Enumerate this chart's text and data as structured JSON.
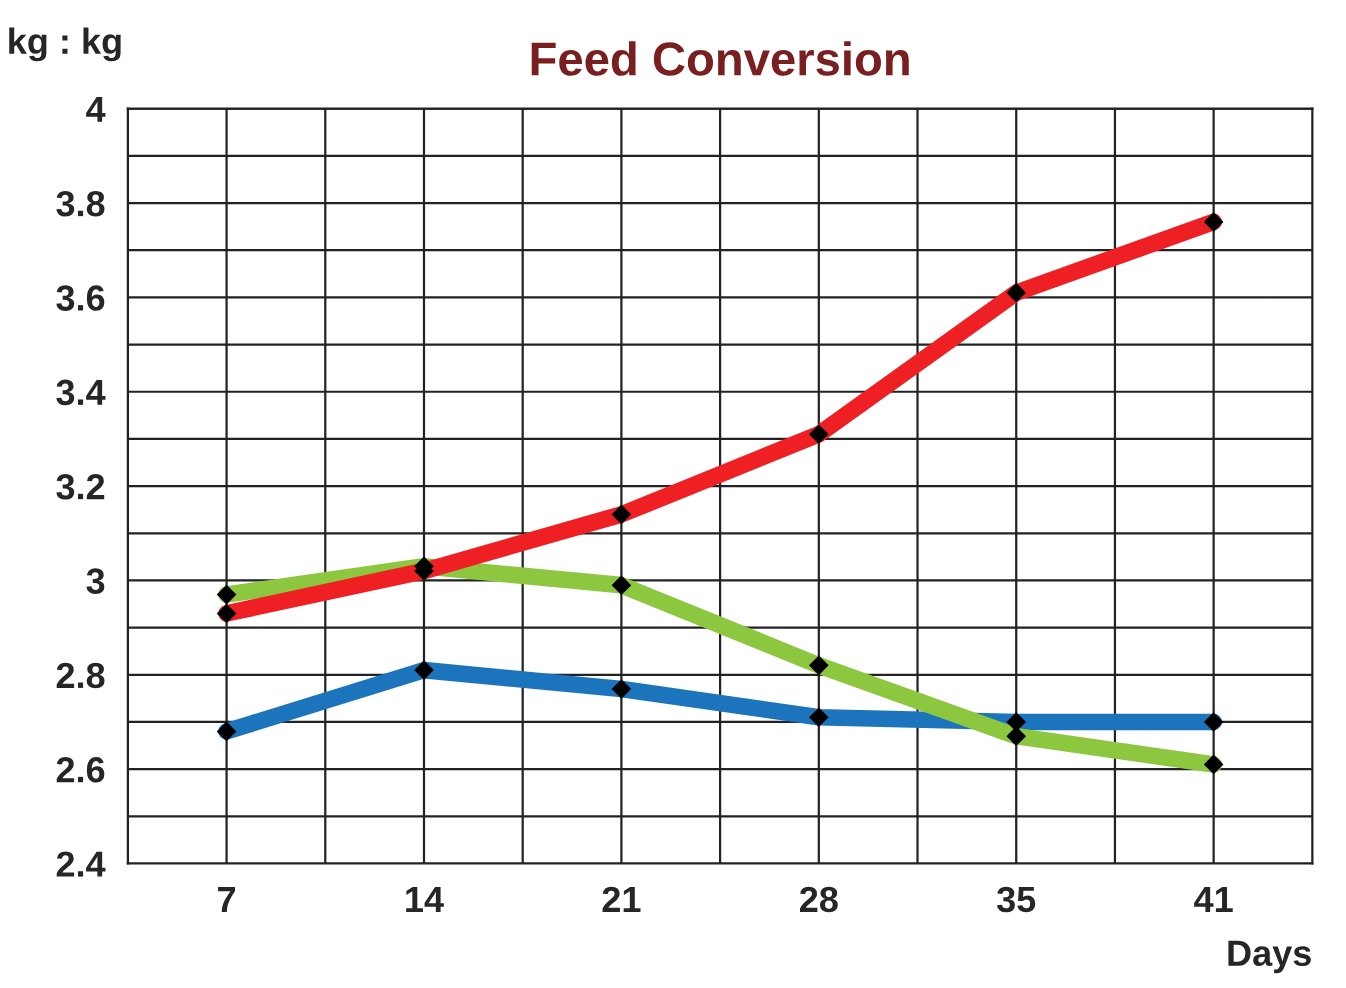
{
  "chart_data": {
    "type": "line",
    "title": "Feed Conversion",
    "ylabel": "kg : kg",
    "xlabel": "Days",
    "categories": [
      "7",
      "14",
      "21",
      "28",
      "35",
      "41"
    ],
    "series": [
      {
        "color": "#ee2024",
        "values": [
          2.93,
          3.02,
          3.14,
          3.31,
          3.61,
          3.76
        ]
      },
      {
        "color": "#8dc63f",
        "values": [
          2.97,
          3.03,
          2.99,
          2.82,
          2.67,
          2.61
        ]
      },
      {
        "color": "#1c75bc",
        "values": [
          2.68,
          2.81,
          2.77,
          2.71,
          2.7,
          2.7
        ]
      }
    ],
    "ylim": [
      2.4,
      4
    ],
    "yticks": [
      2.4,
      {
        "value": 2.5,
        "label": null
      },
      2.6,
      {
        "value": 2.7,
        "label": null
      },
      2.8,
      {
        "value": 2.9,
        "label": null
      },
      3,
      {
        "value": 3.1,
        "label": null
      },
      3.2,
      {
        "value": 3.3,
        "label": null
      },
      3.4,
      {
        "value": 3.5,
        "label": null
      },
      3.6,
      {
        "value": 3.7,
        "label": null
      },
      3.8,
      {
        "value": 3.9,
        "label": null
      },
      4
    ],
    "grid": true,
    "marker": "diamond",
    "line_style": "solid",
    "legend": false
  }
}
